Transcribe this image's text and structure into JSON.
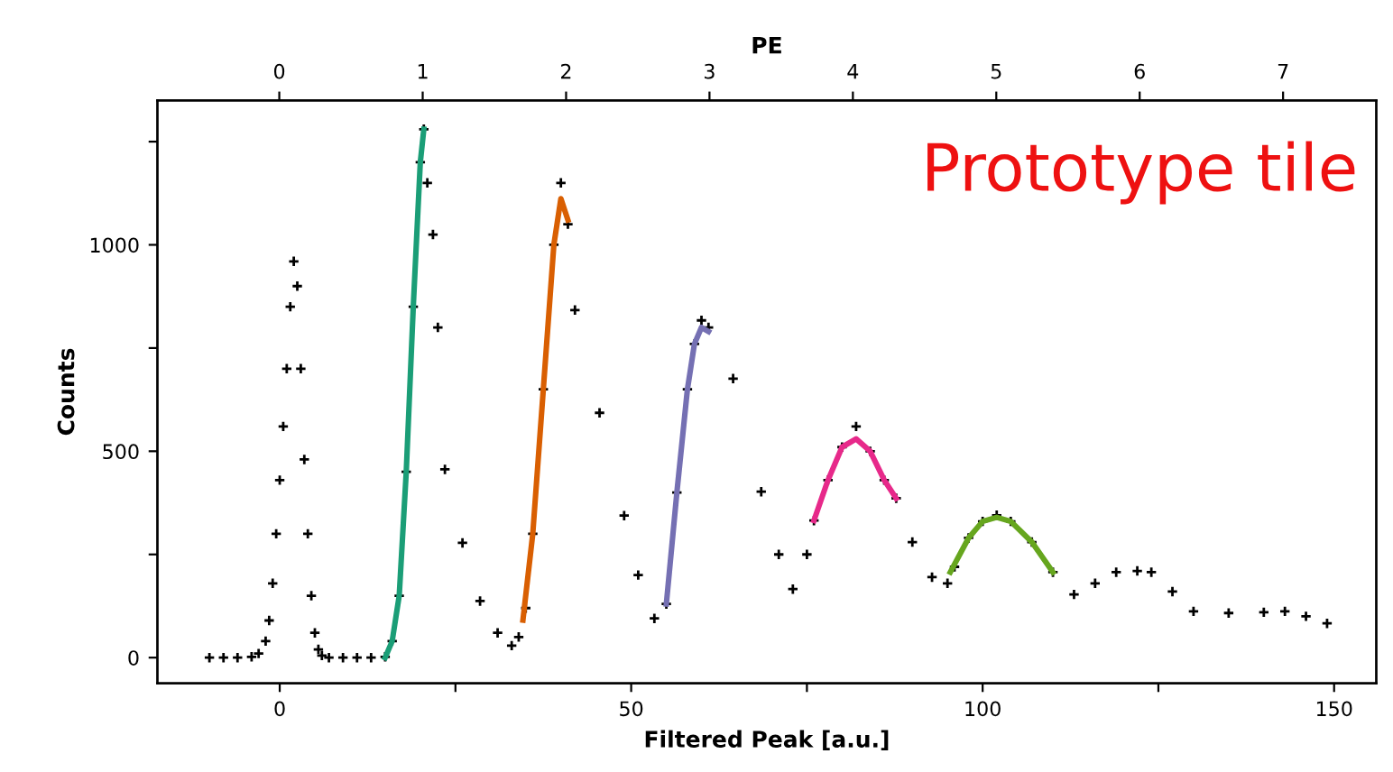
{
  "chart_data": {
    "type": "scatter",
    "xlabel": "Filtered Peak [a.u.]",
    "ylabel": "Counts",
    "x2label": "PE",
    "annotations": [
      "Prototype tile"
    ],
    "xlim": [
      -17.4,
      156
    ],
    "ylim": [
      -62,
      1350
    ],
    "xticks": [
      0,
      {
        "value": 25,
        "label": null
      },
      50,
      {
        "value": 75,
        "label": null
      },
      100,
      {
        "value": 125,
        "label": null
      },
      150
    ],
    "yticks": [
      0,
      {
        "value": 250,
        "label": null
      },
      500,
      {
        "value": 750,
        "label": null
      },
      1000,
      {
        "value": 1250,
        "label": null
      }
    ],
    "x2lim": [
      -0.85,
      7.65
    ],
    "x2ticks": [
      0,
      1,
      2,
      3,
      4,
      5,
      6,
      7
    ],
    "grid": false,
    "series": [
      {
        "marker": "cross",
        "color": "#000000",
        "x": [
          -10,
          -8,
          -6,
          -4,
          -3,
          -2,
          -1.5,
          -1,
          -0.5,
          0,
          0.5,
          1,
          1.5,
          2,
          2.5,
          3,
          3.5,
          4,
          4.5,
          5,
          5.5,
          6,
          7,
          9,
          11,
          13,
          15,
          16,
          17,
          18,
          19,
          20,
          20.5,
          21,
          21.8,
          22.5,
          23.5,
          26,
          28.5,
          31,
          33,
          34,
          35,
          36,
          37.5,
          39,
          40,
          41,
          42,
          45.5,
          49,
          51,
          53.3,
          55,
          56.5,
          58,
          59,
          60,
          61,
          64.5,
          68.5,
          71,
          73,
          75,
          76,
          78,
          80,
          82,
          84,
          86,
          87.7,
          90,
          92.8,
          95,
          96,
          98,
          100,
          102,
          104,
          107,
          110,
          113,
          116,
          119,
          122,
          124,
          127,
          130,
          135,
          140,
          143,
          146,
          149
        ],
        "values": [
          0,
          0,
          0,
          2,
          10,
          40,
          90,
          180,
          300,
          430,
          560,
          700,
          850,
          960,
          900,
          700,
          480,
          300,
          150,
          60,
          20,
          5,
          0,
          0,
          0,
          0,
          2,
          40,
          150,
          450,
          850,
          1200,
          1280,
          1150,
          1025,
          800,
          456,
          278,
          137,
          60,
          29,
          50,
          120,
          300,
          650,
          1000,
          1150,
          1050,
          842,
          593,
          344,
          200,
          95,
          130,
          400,
          650,
          760,
          817,
          800,
          676,
          402,
          250,
          166,
          250,
          332,
          430,
          510,
          560,
          500,
          430,
          386,
          280,
          195,
          180,
          220,
          290,
          330,
          345,
          330,
          280,
          207,
          153,
          180,
          207,
          210,
          207,
          160,
          112,
          108,
          110,
          112,
          100,
          83
        ]
      },
      {
        "type": "line",
        "color": "#1b9e77",
        "marker": "none",
        "x": [
          15,
          16,
          17,
          18,
          19,
          20,
          20.5
        ],
        "values": [
          0,
          40,
          150,
          450,
          850,
          1200,
          1280
        ]
      },
      {
        "type": "line",
        "color": "#d95f02",
        "marker": "none",
        "x": [
          34.6,
          36,
          37.5,
          39,
          40,
          41
        ],
        "values": [
          91,
          300,
          650,
          1000,
          1112,
          1060
        ]
      },
      {
        "type": "line",
        "color": "#7570b3",
        "marker": "none",
        "x": [
          55,
          56.5,
          58,
          59,
          60,
          61
        ],
        "values": [
          130,
          400,
          650,
          760,
          800,
          790
        ]
      },
      {
        "type": "line",
        "color": "#e7298a",
        "marker": "none",
        "x": [
          76,
          78,
          80,
          82,
          84,
          86,
          87.7
        ],
        "values": [
          332,
          430,
          510,
          530,
          500,
          430,
          386
        ]
      },
      {
        "type": "line",
        "color": "#66a61e",
        "marker": "none",
        "x": [
          95.4,
          98,
          100,
          102,
          104,
          107,
          110
        ],
        "values": [
          207,
          290,
          330,
          340,
          330,
          280,
          207
        ]
      }
    ]
  }
}
